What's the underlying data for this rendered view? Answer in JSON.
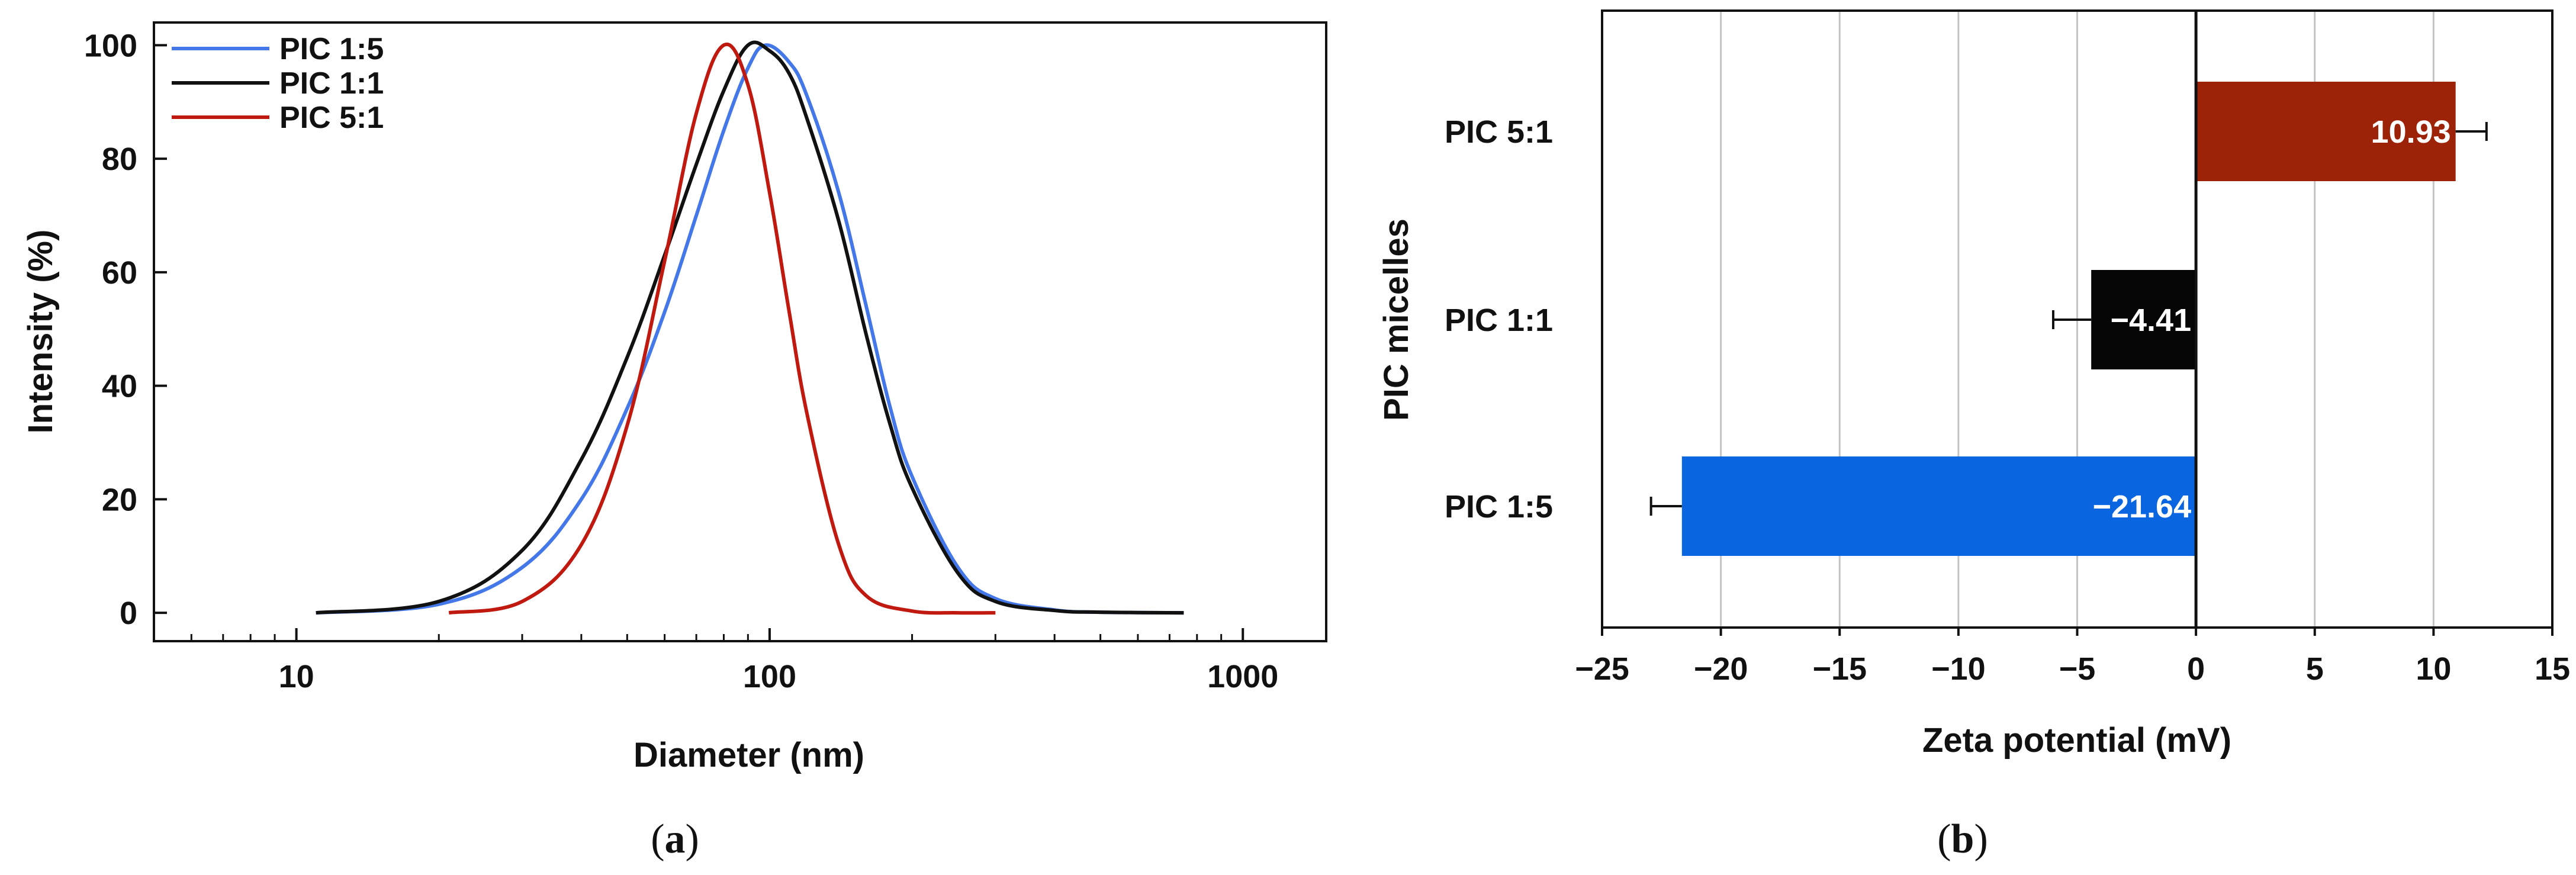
{
  "chart_data": [
    {
      "type": "line",
      "panel": "a",
      "caption_open": "(",
      "caption_letter": "a",
      "caption_close": ")",
      "title": "",
      "xlabel": "Diameter (nm)",
      "ylabel": "Intensity (%)",
      "xscale": "log",
      "xlim": [
        5,
        1500
      ],
      "ylim": [
        -5,
        104
      ],
      "xticks": [
        {
          "value": 10,
          "label": "10"
        },
        {
          "value": 100,
          "label": "100"
        },
        {
          "value": 1000,
          "label": "1000"
        }
      ],
      "yticks": [
        {
          "value": 0,
          "label": "0"
        },
        {
          "value": 20,
          "label": "20"
        },
        {
          "value": 40,
          "label": "40"
        },
        {
          "value": 60,
          "label": "60"
        },
        {
          "value": 80,
          "label": "80"
        },
        {
          "value": 100,
          "label": "100"
        }
      ],
      "legend_position": "top-left",
      "grid": false,
      "series": [
        {
          "name": "PIC 1:5",
          "color": "#4477e8",
          "x": [
            11,
            20,
            30,
            40,
            50,
            60,
            70,
            80,
            90,
            98,
            110,
            120,
            140,
            160,
            180,
            200,
            250,
            300,
            400,
            500,
            750
          ],
          "y": [
            0,
            1.5,
            8,
            20,
            36,
            53,
            70,
            85,
            96,
            100,
            97,
            91,
            74,
            54,
            36,
            24,
            8,
            2.5,
            0.5,
            0.1,
            0
          ]
        },
        {
          "name": "PIC 1:1",
          "color": "#111111",
          "x": [
            11,
            20,
            30,
            40,
            50,
            60,
            70,
            80,
            90,
            100,
            110,
            120,
            140,
            160,
            180,
            200,
            250,
            300,
            400,
            500,
            750
          ],
          "y": [
            0,
            2,
            11,
            27,
            45,
            63,
            79,
            92,
            100,
            99,
            95,
            87,
            69,
            49,
            33,
            22,
            7,
            2,
            0.4,
            0.1,
            0
          ]
        },
        {
          "name": "PIC 5:1",
          "color": "#c01a10",
          "x": [
            21,
            30,
            40,
            50,
            60,
            70,
            80,
            90,
            100,
            110,
            120,
            140,
            160,
            200,
            250,
            300
          ],
          "y": [
            0,
            2,
            12,
            33,
            62,
            88,
            100,
            93,
            74,
            53,
            35,
            12,
            3,
            0.3,
            0,
            0
          ]
        }
      ]
    },
    {
      "type": "bar",
      "orientation": "horizontal",
      "panel": "b",
      "caption_open": "(",
      "caption_letter": "b",
      "caption_close": ")",
      "title": "",
      "xlabel": "Zeta potential (mV)",
      "ylabel": "PIC micelles",
      "xlim": [
        -25,
        15
      ],
      "xticks": [
        {
          "value": -25,
          "label": "−25"
        },
        {
          "value": -20,
          "label": "−20"
        },
        {
          "value": -15,
          "label": "−15"
        },
        {
          "value": -10,
          "label": "−10"
        },
        {
          "value": -5,
          "label": "−5"
        },
        {
          "value": 0,
          "label": "0"
        },
        {
          "value": 5,
          "label": "5"
        },
        {
          "value": 10,
          "label": "10"
        },
        {
          "value": 15,
          "label": "15"
        }
      ],
      "grid": true,
      "categories": [
        "PIC 5:1",
        "PIC 1:1",
        "PIC 1:5"
      ],
      "values": [
        10.93,
        -4.41,
        -21.64
      ],
      "errors": [
        1.3,
        1.6,
        1.3
      ],
      "value_labels": [
        "10.93",
        "−4.41",
        "−21.64"
      ],
      "colors": [
        "#9c2208",
        "#050505",
        "#0a66e0"
      ]
    }
  ]
}
